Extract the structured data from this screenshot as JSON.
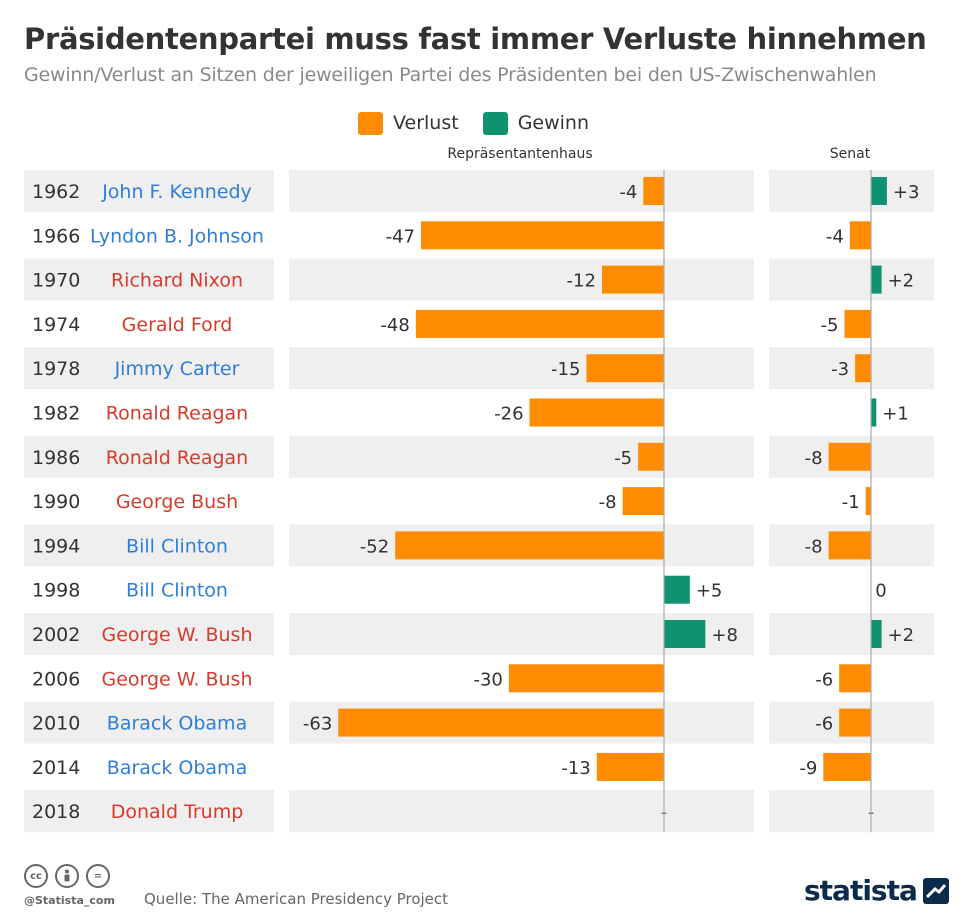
{
  "header": {
    "title": "Präsidentenpartei muss fast immer Verluste hinnehmen",
    "subtitle": "Gewinn/Verlust an Sitzen der jeweiligen Partei des Präsidenten bei den US-Zwischenwahlen"
  },
  "legend": {
    "loss_label": "Verlust",
    "gain_label": "Gewinn"
  },
  "colors": {
    "loss": "#ff8c00",
    "gain": "#0e9270",
    "democrat": "#2f7ed8",
    "republican": "#d93b2b",
    "row_band": "#efefef",
    "axis": "#aaaaaa"
  },
  "chart_data": {
    "type": "bar",
    "orientation": "horizontal",
    "columns": [
      "Repräsentantenhaus",
      "Senat"
    ],
    "rows": [
      {
        "year": "1962",
        "president": "John F. Kennedy",
        "party": "democrat",
        "house": -4,
        "senate": 3,
        "house_label": "-4",
        "senate_label": "+3"
      },
      {
        "year": "1966",
        "president": "Lyndon B. Johnson",
        "party": "democrat",
        "house": -47,
        "senate": -4,
        "house_label": "-47",
        "senate_label": "-4"
      },
      {
        "year": "1970",
        "president": "Richard Nixon",
        "party": "republican",
        "house": -12,
        "senate": 2,
        "house_label": "-12",
        "senate_label": "+2"
      },
      {
        "year": "1974",
        "president": "Gerald Ford",
        "party": "republican",
        "house": -48,
        "senate": -5,
        "house_label": "-48",
        "senate_label": "-5"
      },
      {
        "year": "1978",
        "president": "Jimmy Carter",
        "party": "democrat",
        "house": -15,
        "senate": -3,
        "house_label": "-15",
        "senate_label": "-3"
      },
      {
        "year": "1982",
        "president": "Ronald Reagan",
        "party": "republican",
        "house": -26,
        "senate": 1,
        "house_label": "-26",
        "senate_label": "+1"
      },
      {
        "year": "1986",
        "president": "Ronald Reagan",
        "party": "republican",
        "house": -5,
        "senate": -8,
        "house_label": "-5",
        "senate_label": "-8"
      },
      {
        "year": "1990",
        "president": "George Bush",
        "party": "republican",
        "house": -8,
        "senate": -1,
        "house_label": "-8",
        "senate_label": "-1"
      },
      {
        "year": "1994",
        "president": "Bill Clinton",
        "party": "democrat",
        "house": -52,
        "senate": -8,
        "house_label": "-52",
        "senate_label": "-8"
      },
      {
        "year": "1998",
        "president": "Bill Clinton",
        "party": "democrat",
        "house": 5,
        "senate": 0,
        "house_label": "+5",
        "senate_label": "0"
      },
      {
        "year": "2002",
        "president": "George W. Bush",
        "party": "republican",
        "house": 8,
        "senate": 2,
        "house_label": "+8",
        "senate_label": "+2"
      },
      {
        "year": "2006",
        "president": "George W. Bush",
        "party": "republican",
        "house": -30,
        "senate": -6,
        "house_label": "-30",
        "senate_label": "-6"
      },
      {
        "year": "2010",
        "president": "Barack Obama",
        "party": "democrat",
        "house": -63,
        "senate": -6,
        "house_label": "-63",
        "senate_label": "-6"
      },
      {
        "year": "2014",
        "president": "Barack Obama",
        "party": "democrat",
        "house": -13,
        "senate": -9,
        "house_label": "-13",
        "senate_label": "-9"
      },
      {
        "year": "2018",
        "president": "Donald Trump",
        "party": "republican",
        "house": null,
        "senate": null,
        "house_label": "-",
        "senate_label": "-"
      }
    ]
  },
  "footer": {
    "handle": "@Statista_com",
    "source": "Quelle: The American Presidency Project",
    "logo_text": "statista",
    "license_icons": [
      "cc-icon",
      "person-icon",
      "equals-icon"
    ],
    "license_glyphs": [
      "cc",
      "",
      "="
    ]
  }
}
